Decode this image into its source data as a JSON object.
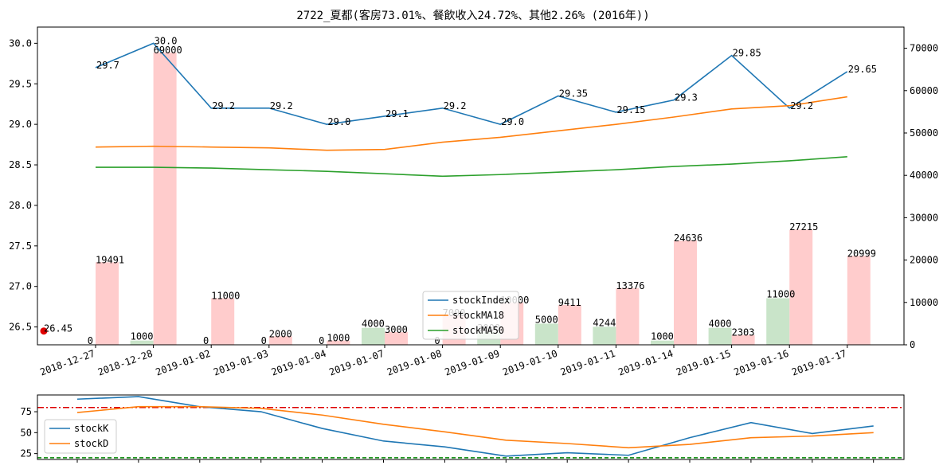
{
  "chart_data": [
    {
      "type": "line+bar",
      "title": "2722_夏都(客房73.01%、餐飲收入24.72%、其他2.26% (2016年))",
      "categories": [
        "2018-12-27",
        "2018-12-28",
        "2019-01-02",
        "2019-01-03",
        "2019-01-04",
        "2019-01-07",
        "2019-01-08",
        "2019-01-09",
        "2019-01-10",
        "2019-01-11",
        "2019-01-14",
        "2019-01-15",
        "2019-01-16",
        "2019-01-17"
      ],
      "ylim_left": [
        26.28,
        30.2
      ],
      "yticks_left": [
        "26.5",
        "27.0",
        "27.5",
        "28.0",
        "28.5",
        "29.0",
        "29.5",
        "30.0"
      ],
      "ylim_right": [
        0,
        75000
      ],
      "yticks_right": [
        "0",
        "10000",
        "20000",
        "30000",
        "40000",
        "50000",
        "60000",
        "70000"
      ],
      "legend_position": "lower center",
      "series": [
        {
          "name": "stockIndex",
          "color": "#1f77b4",
          "values": [
            29.7,
            30.0,
            29.2,
            29.2,
            29.0,
            29.1,
            29.2,
            29.0,
            29.35,
            29.15,
            29.3,
            29.85,
            29.2,
            29.65
          ],
          "labels": [
            "29.7",
            "30.0",
            "29.2",
            "29.2",
            "29.0",
            "29.1",
            "29.2",
            "29.0",
            "29.35",
            "29.15",
            "29.3",
            "29.85",
            "29.2",
            "29.65"
          ]
        },
        {
          "name": "stockMA18",
          "color": "#ff7f0e",
          "values": [
            28.72,
            28.73,
            28.72,
            28.71,
            28.68,
            28.69,
            28.78,
            28.84,
            28.92,
            29.0,
            29.09,
            29.19,
            29.23,
            29.34
          ]
        },
        {
          "name": "stockMA50",
          "color": "#2ca02c",
          "values": [
            28.47,
            28.47,
            28.46,
            28.44,
            28.42,
            28.39,
            28.36,
            28.38,
            28.41,
            28.44,
            28.48,
            28.51,
            28.55,
            28.6
          ]
        }
      ],
      "bars_red": {
        "color": "#ffcccc",
        "values": [
          19491,
          69000,
          11000,
          2000,
          1000,
          3000,
          7000,
          10000,
          9411,
          13376,
          24636,
          2303,
          27215,
          20999
        ],
        "labels": [
          "19491",
          "69000",
          "11000",
          "2000",
          "1000",
          "3000",
          "7000",
          "10000",
          "9411",
          "13376",
          "24636",
          "2303",
          "27215",
          "20999"
        ]
      },
      "bars_green": {
        "color": "#c9e4c9",
        "values": [
          0,
          1000,
          0,
          0,
          0,
          4000,
          0,
          3000,
          5000,
          4244,
          1000,
          4000,
          11000,
          0
        ],
        "labels": [
          "0",
          "1000",
          "0",
          "0",
          "0",
          "4000",
          "0",
          "3000",
          "5000",
          "4244",
          "1000",
          "4000",
          "11000",
          ""
        ]
      },
      "marker": {
        "value": 26.45,
        "label": "26.45",
        "color": "#e00000"
      }
    },
    {
      "type": "line",
      "xlim": [
        0,
        14
      ],
      "ylim": [
        18,
        95
      ],
      "yticks": [
        "25",
        "50",
        "75"
      ],
      "hlines": [
        {
          "value": 80,
          "color": "#dd0000",
          "style": "dash-dot"
        },
        {
          "value": 20,
          "color": "#008800",
          "style": "dashed"
        }
      ],
      "legend_position": "center-left",
      "series": [
        {
          "name": "stockK",
          "color": "#1f77b4",
          "values": [
            90,
            93,
            81,
            75,
            55,
            40,
            33,
            22,
            26,
            23,
            44,
            62,
            49,
            58
          ]
        },
        {
          "name": "stockD",
          "color": "#ff7f0e",
          "values": [
            74,
            81,
            81,
            79,
            71,
            60,
            51,
            41,
            37,
            32,
            36,
            44,
            46,
            50
          ]
        }
      ]
    }
  ]
}
